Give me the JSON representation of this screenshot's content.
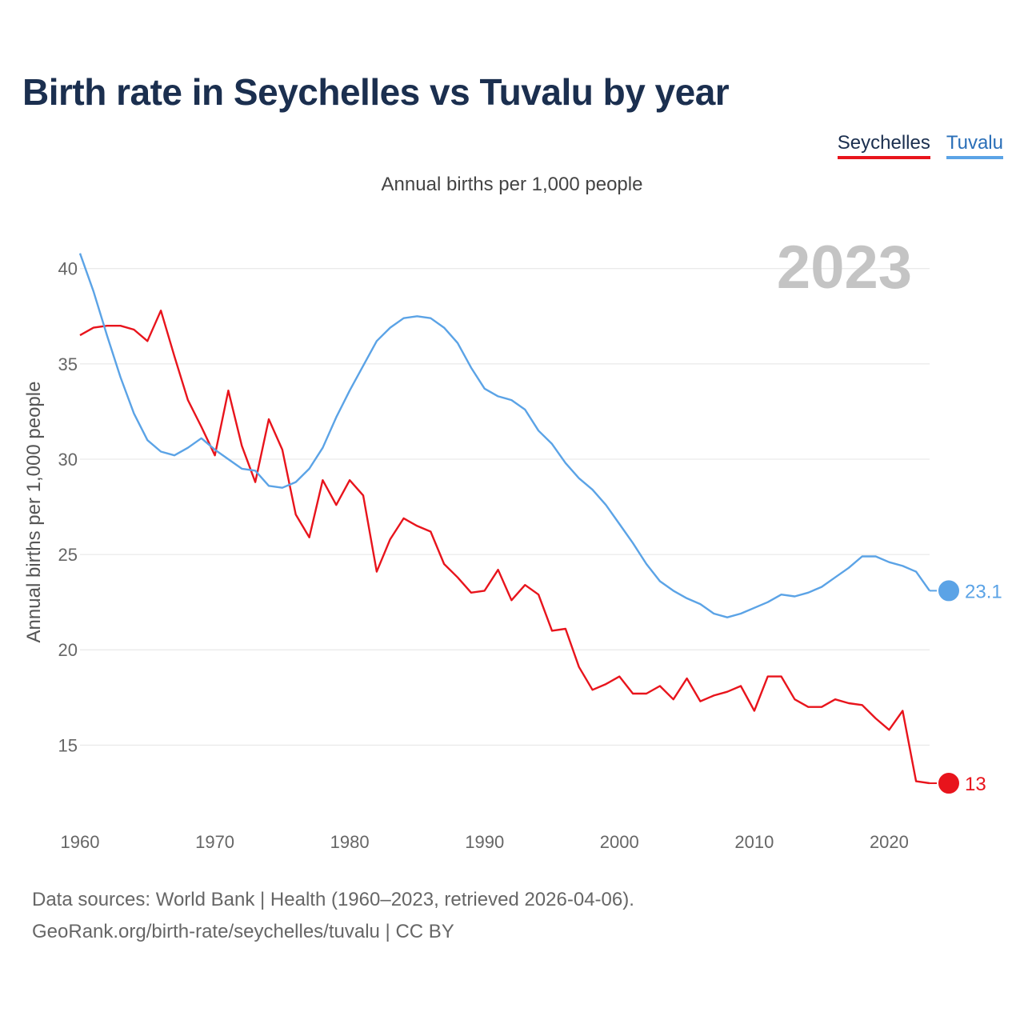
{
  "title": "Birth rate in Seychelles vs Tuvalu by year",
  "subtitle": "Annual births per 1,000 people",
  "year_watermark": "2023",
  "legend": [
    {
      "name": "Seychelles",
      "color": "#e8141c"
    },
    {
      "name": "Tuvalu",
      "color": "#5ba3e6"
    }
  ],
  "footer": {
    "line1": "Data sources: World Bank | Health (1960–2023, retrieved 2026-04-06).",
    "line2": "GeoRank.org/birth-rate/seychelles/tuvalu | CC BY"
  },
  "chart_data": {
    "type": "line",
    "title": "Birth rate in Seychelles vs Tuvalu by year",
    "xlabel": "",
    "ylabel": "Annual births per 1,000 people",
    "xlim": [
      1960,
      2023
    ],
    "ylim": [
      11.7,
      41.5
    ],
    "xticks": [
      1960,
      1970,
      1980,
      1990,
      2000,
      2010,
      2020
    ],
    "yticks": [
      15,
      20,
      25,
      30,
      35,
      40
    ],
    "grid": true,
    "legend_position": "top-right",
    "x": [
      1960,
      1961,
      1962,
      1963,
      1964,
      1965,
      1966,
      1967,
      1968,
      1969,
      1970,
      1971,
      1972,
      1973,
      1974,
      1975,
      1976,
      1977,
      1978,
      1979,
      1980,
      1981,
      1982,
      1983,
      1984,
      1985,
      1986,
      1987,
      1988,
      1989,
      1990,
      1991,
      1992,
      1993,
      1994,
      1995,
      1996,
      1997,
      1998,
      1999,
      2000,
      2001,
      2002,
      2003,
      2004,
      2005,
      2006,
      2007,
      2008,
      2009,
      2010,
      2011,
      2012,
      2013,
      2014,
      2015,
      2016,
      2017,
      2018,
      2019,
      2020,
      2021,
      2022,
      2023
    ],
    "series": [
      {
        "name": "Seychelles",
        "color": "#e8141c",
        "end_label": "13",
        "values": [
          36.5,
          36.9,
          37.0,
          37.0,
          36.8,
          36.2,
          37.8,
          35.4,
          33.1,
          31.7,
          30.2,
          33.6,
          30.7,
          28.8,
          32.1,
          30.5,
          27.1,
          25.9,
          28.9,
          27.6,
          28.9,
          28.1,
          24.1,
          25.8,
          26.9,
          26.5,
          26.2,
          24.5,
          23.8,
          23.0,
          23.1,
          24.2,
          22.6,
          23.4,
          22.9,
          21.0,
          21.1,
          19.1,
          17.9,
          18.2,
          18.6,
          17.7,
          17.7,
          18.1,
          17.4,
          18.5,
          17.3,
          17.6,
          17.8,
          18.1,
          16.8,
          18.6,
          18.6,
          17.4,
          17.0,
          17.0,
          17.4,
          17.2,
          17.1,
          16.4,
          15.8,
          16.8,
          13.1,
          13.0
        ]
      },
      {
        "name": "Tuvalu",
        "color": "#5ba3e6",
        "end_label": "23.1",
        "values": [
          40.8,
          38.8,
          36.5,
          34.3,
          32.4,
          31.0,
          30.4,
          30.2,
          30.6,
          31.1,
          30.5,
          30.0,
          29.5,
          29.4,
          28.6,
          28.5,
          28.8,
          29.5,
          30.6,
          32.2,
          33.6,
          34.9,
          36.2,
          36.9,
          37.4,
          37.5,
          37.4,
          36.9,
          36.1,
          34.8,
          33.7,
          33.3,
          33.1,
          32.6,
          31.5,
          30.8,
          29.8,
          29.0,
          28.4,
          27.6,
          26.6,
          25.6,
          24.5,
          23.6,
          23.1,
          22.7,
          22.4,
          21.9,
          21.7,
          21.9,
          22.2,
          22.5,
          22.9,
          22.8,
          23.0,
          23.3,
          23.8,
          24.3,
          24.9,
          24.9,
          24.6,
          24.4,
          24.1,
          23.1
        ]
      }
    ]
  }
}
